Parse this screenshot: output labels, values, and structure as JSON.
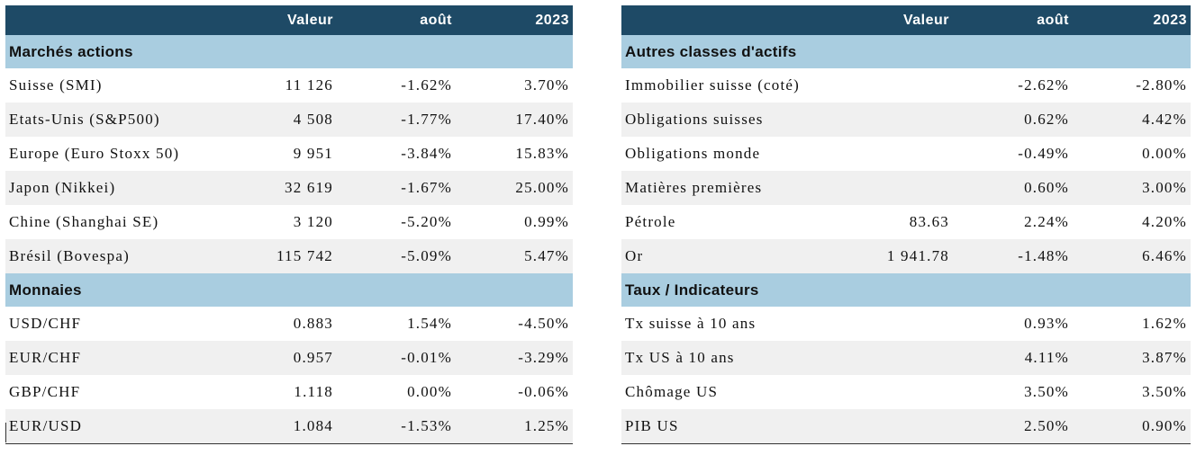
{
  "headers": [
    "",
    "Valeur",
    "août",
    "2023"
  ],
  "left": {
    "sections": [
      {
        "title": "Marchés actions",
        "rows": [
          {
            "name": "Suisse (SMI)",
            "valeur": "11 126",
            "aout": "-1.62%",
            "y2023": "3.70%"
          },
          {
            "name": "Etats-Unis (S&P500)",
            "valeur": "4 508",
            "aout": "-1.77%",
            "y2023": "17.40%"
          },
          {
            "name": "Europe (Euro Stoxx 50)",
            "valeur": "9 951",
            "aout": "-3.84%",
            "y2023": "15.83%"
          },
          {
            "name": "Japon (Nikkei)",
            "valeur": "32 619",
            "aout": "-1.67%",
            "y2023": "25.00%"
          },
          {
            "name": "Chine (Shanghai SE)",
            "valeur": "3 120",
            "aout": "-5.20%",
            "y2023": "0.99%"
          },
          {
            "name": "Brésil (Bovespa)",
            "valeur": "115 742",
            "aout": "-5.09%",
            "y2023": "5.47%"
          }
        ]
      },
      {
        "title": "Monnaies",
        "rows": [
          {
            "name": "USD/CHF",
            "valeur": "0.883",
            "aout": "1.54%",
            "y2023": "-4.50%"
          },
          {
            "name": "EUR/CHF",
            "valeur": "0.957",
            "aout": "-0.01%",
            "y2023": "-3.29%"
          },
          {
            "name": "GBP/CHF",
            "valeur": "1.118",
            "aout": "0.00%",
            "y2023": "-0.06%"
          },
          {
            "name": "EUR/USD",
            "valeur": "1.084",
            "aout": "-1.53%",
            "y2023": "1.25%"
          }
        ]
      }
    ]
  },
  "right": {
    "sections": [
      {
        "title": "Autres classes d'actifs",
        "rows": [
          {
            "name": "Immobilier suisse (coté)",
            "valeur": "",
            "aout": "-2.62%",
            "y2023": "-2.80%"
          },
          {
            "name": "Obligations suisses",
            "valeur": "",
            "aout": "0.62%",
            "y2023": "4.42%"
          },
          {
            "name": "Obligations monde",
            "valeur": "",
            "aout": "-0.49%",
            "y2023": "0.00%"
          },
          {
            "name": "Matières premières",
            "valeur": "",
            "aout": "0.60%",
            "y2023": "3.00%"
          },
          {
            "name": "Pétrole",
            "valeur": "83.63",
            "aout": "2.24%",
            "y2023": "4.20%"
          },
          {
            "name": "Or",
            "valeur": "1 941.78",
            "aout": "-1.48%",
            "y2023": "6.46%"
          }
        ]
      },
      {
        "title": "Taux / Indicateurs",
        "rows": [
          {
            "name": "Tx suisse à 10 ans",
            "valeur": "",
            "aout": "0.93%",
            "y2023": "1.62%"
          },
          {
            "name": "Tx US à 10 ans",
            "valeur": "",
            "aout": "4.11%",
            "y2023": "3.87%"
          },
          {
            "name": "Chômage US",
            "valeur": "",
            "aout": "3.50%",
            "y2023": "3.50%"
          },
          {
            "name": "PIB US",
            "valeur": "",
            "aout": "2.50%",
            "y2023": "0.90%"
          }
        ]
      }
    ]
  }
}
